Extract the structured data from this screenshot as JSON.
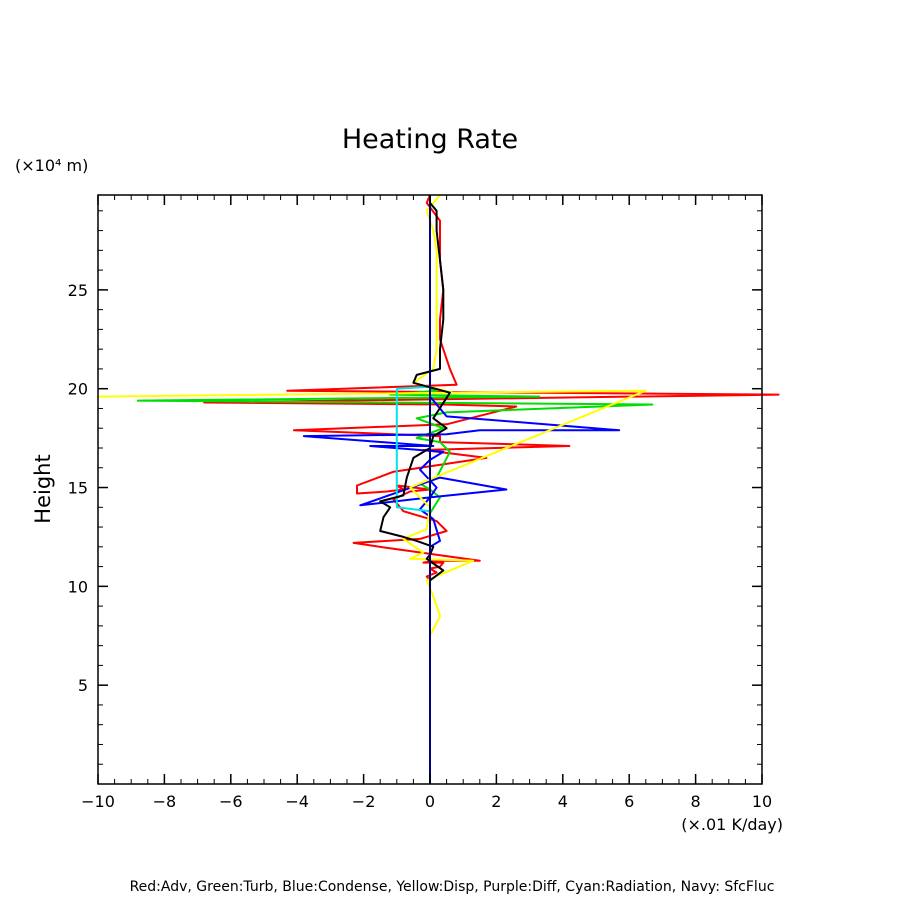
{
  "chart_data": {
    "type": "line",
    "title": "Heating Rate",
    "ylabel": "Height",
    "y_unit": "(×10⁴ m)",
    "x_unit": "(×.01 K/day)",
    "xlim": [
      -10,
      10
    ],
    "ylim": [
      0,
      29.8
    ],
    "x_ticks": [
      -10,
      -8,
      -6,
      -4,
      -2,
      0,
      2,
      4,
      6,
      8,
      10
    ],
    "x_tick_labels": [
      "−10",
      "−8",
      "−6",
      "−4",
      "−2",
      "0",
      "2",
      "4",
      "6",
      "8",
      "10"
    ],
    "y_ticks": [
      5,
      10,
      15,
      20,
      25
    ],
    "y_tick_labels": [
      "5",
      "10",
      "15",
      "20",
      "25"
    ],
    "x_minor_step": 0.5,
    "y_minor_step": 1,
    "grid": false,
    "legend_placement": "bottom",
    "legend_text": "Red:Adv, Green:Turb, Blue:Condense, Yellow:Disp, Purple:Diff, Cyan:Radiation, Navy: SfcFluc",
    "series": [
      {
        "name": "Adv",
        "color": "#ff0000",
        "x": [
          0,
          0,
          0,
          0,
          0,
          -0.1,
          0.2,
          0,
          0.3,
          0.4,
          -0.2,
          0.1,
          1.5,
          0.2,
          -1.1,
          -2.3,
          -0.3,
          0.5,
          0.2,
          -0.8,
          -1.1,
          -0.6,
          0,
          -1.0,
          -0.8,
          -1.3,
          -2.2,
          -2.2,
          -1.1,
          1.7,
          -0.2,
          4.2,
          0.3,
          0.3,
          -4.1,
          0.5,
          2.6,
          0.4,
          -6.8,
          10.5,
          -4.3,
          0.8,
          0.6,
          0.3,
          0.3,
          0.4,
          0.3,
          0.3,
          0.3,
          -0.1,
          0.0
        ],
        "y": [
          0,
          7.5,
          9.0,
          10.0,
          10.3,
          10.5,
          10.7,
          10.9,
          11.0,
          11.2,
          11.2,
          11.3,
          11.3,
          11.6,
          11.9,
          12.2,
          12.4,
          12.8,
          13.3,
          13.8,
          14.4,
          14.8,
          14.9,
          15.1,
          14.9,
          14.8,
          14.7,
          15.1,
          15.8,
          16.5,
          16.9,
          17.1,
          17.3,
          17.6,
          17.9,
          18.2,
          19.1,
          19.2,
          19.3,
          19.7,
          19.9,
          20.2,
          21.0,
          22.5,
          23.5,
          25.0,
          26.5,
          27.5,
          28.5,
          29.4,
          29.8
        ]
      },
      {
        "name": "Turb",
        "color": "#00dd00",
        "x": [
          0,
          0,
          0,
          0.3,
          0,
          -0.3,
          0.2,
          0.6,
          0.3,
          -0.4,
          0.4,
          -0.4,
          0.5,
          6.7,
          -8.8,
          3.3,
          -1.2,
          0.2,
          0
        ],
        "y": [
          0,
          13.0,
          13.7,
          14.5,
          14.9,
          15.2,
          15.5,
          16.8,
          17.3,
          17.5,
          18.0,
          18.5,
          18.8,
          19.2,
          19.4,
          19.6,
          19.7,
          19.9,
          20.0
        ]
      },
      {
        "name": "Condense",
        "color": "#0000ff",
        "x": [
          0,
          0,
          0,
          0.3,
          0.1,
          -0.3,
          0,
          2.3,
          0.3,
          -2.1,
          0,
          0.2,
          -0.3,
          0,
          0.4,
          -1.8,
          0.1,
          -3.8,
          0.5,
          1.5,
          5.7,
          0.5,
          0,
          0,
          0
        ],
        "y": [
          0,
          11.0,
          12.0,
          12.3,
          13.4,
          13.9,
          14.5,
          14.9,
          15.5,
          14.1,
          14.5,
          15.0,
          15.9,
          16.4,
          16.8,
          17.1,
          17.1,
          17.6,
          17.7,
          17.9,
          17.9,
          18.6,
          19.6,
          20.0,
          29.8
        ]
      },
      {
        "name": "Disp",
        "color": "#ffff00",
        "x": [
          0,
          0,
          0.3,
          0.1,
          -0.1,
          1.3,
          -0.6,
          -0.2,
          -0.8,
          -0.1,
          0,
          -0.6,
          6.5,
          -10.0,
          0.7,
          -0.5,
          0.1,
          0.2,
          0.2,
          0.2,
          0.2,
          0.1,
          -0.1,
          0.3
        ],
        "y": [
          0,
          7.5,
          8.5,
          9.5,
          10.3,
          11.3,
          11.4,
          11.7,
          12.4,
          12.9,
          14.0,
          15.0,
          19.9,
          19.6,
          19.8,
          20.3,
          21.0,
          22.0,
          24.0,
          26.0,
          27.0,
          28.0,
          29.0,
          29.8
        ]
      },
      {
        "name": "Radiation",
        "color": "#00e5e5",
        "x": [
          0,
          0,
          -1.0,
          -1.0,
          -1.0,
          0,
          0
        ],
        "y": [
          0,
          13.8,
          14.0,
          17.0,
          20.0,
          20.1,
          29.8
        ]
      },
      {
        "name": "SfcFluc",
        "color": "#000000",
        "x": [
          0,
          0,
          0.4,
          -0.1,
          0,
          0.1,
          -0.4,
          -0.8,
          -1.5,
          -1.4,
          -1.2,
          -1.5,
          -0.8,
          -0.7,
          -0.5,
          0,
          0.1,
          0.5,
          0.1,
          0.6,
          -0.5,
          -0.4,
          0.3,
          0.3,
          0.4,
          0.4,
          0.3,
          0.2,
          0.2,
          0,
          0
        ],
        "y": [
          0,
          10.3,
          10.8,
          11.4,
          11.6,
          12.0,
          12.3,
          12.5,
          12.8,
          13.5,
          14.0,
          14.3,
          14.6,
          15.5,
          16.5,
          17.0,
          17.6,
          18.0,
          18.5,
          19.8,
          20.3,
          20.7,
          21.0,
          22.0,
          23.5,
          25.0,
          26.5,
          28.0,
          29.0,
          29.4,
          29.8
        ]
      },
      {
        "name": "Navy",
        "color": "#000080",
        "x": [
          0,
          0
        ],
        "y": [
          0,
          29.8
        ]
      }
    ]
  }
}
